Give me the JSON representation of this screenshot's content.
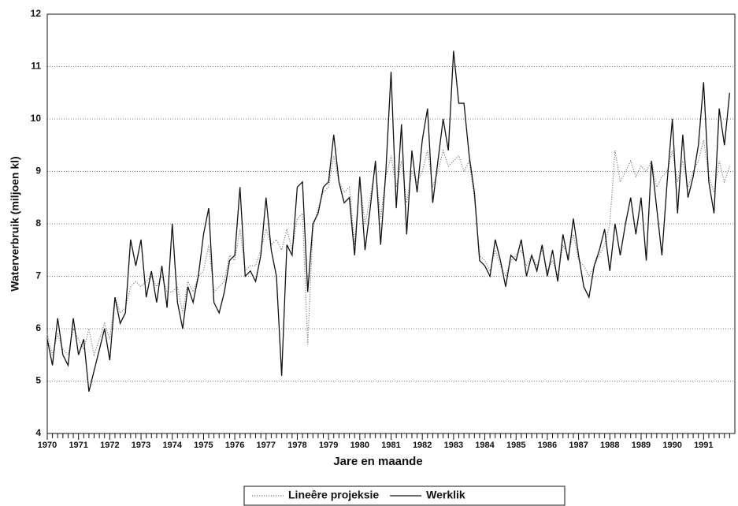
{
  "chart_data": {
    "type": "line",
    "y_label": "Waterverbruik (miljoen kl)",
    "x_label": "Jare en maande",
    "categories": [
      "1970",
      null,
      null,
      null,
      null,
      null,
      "1971",
      null,
      null,
      null,
      null,
      null,
      "1972",
      null,
      null,
      null,
      null,
      null,
      "1973",
      null,
      null,
      null,
      null,
      null,
      "1974",
      null,
      null,
      null,
      null,
      null,
      "1975",
      null,
      null,
      null,
      null,
      null,
      "1976",
      null,
      null,
      null,
      null,
      null,
      "1977",
      null,
      null,
      null,
      null,
      null,
      "1978",
      null,
      null,
      null,
      null,
      null,
      "1979",
      null,
      null,
      null,
      null,
      null,
      "1980",
      null,
      null,
      null,
      null,
      null,
      "1981",
      null,
      null,
      null,
      null,
      null,
      "1982",
      null,
      null,
      null,
      null,
      null,
      "1983",
      null,
      null,
      null,
      null,
      null,
      "1984",
      null,
      null,
      null,
      null,
      null,
      "1985",
      null,
      null,
      null,
      null,
      null,
      "1986",
      null,
      null,
      null,
      null,
      null,
      "1987",
      null,
      null,
      null,
      null,
      null,
      "1988",
      null,
      null,
      null,
      null,
      null,
      "1989",
      null,
      null,
      null,
      null,
      null,
      "1990",
      null,
      null,
      null,
      null,
      null,
      "1991",
      null,
      null,
      null,
      null,
      null
    ],
    "series": [
      {
        "name": "Lineêre projeksie",
        "color": "#777777",
        "style": "dotted",
        "values": [
          5.9,
          5.5,
          5.9,
          5.6,
          5.5,
          6.0,
          5.8,
          5.6,
          6.0,
          5.5,
          5.8,
          6.1,
          5.8,
          6.6,
          6.3,
          6.4,
          6.8,
          6.9,
          6.8,
          6.9,
          7.0,
          6.8,
          7.0,
          6.7,
          6.7,
          6.8,
          6.3,
          6.9,
          6.7,
          7.0,
          7.1,
          7.6,
          6.7,
          6.8,
          6.9,
          7.4,
          7.3,
          7.9,
          7.1,
          7.2,
          7.2,
          7.5,
          7.9,
          7.6,
          7.7,
          7.5,
          7.9,
          7.5,
          8.1,
          8.2,
          5.7,
          7.9,
          8.3,
          8.6,
          8.7,
          9.3,
          8.8,
          8.6,
          8.7,
          7.6,
          8.8,
          8.0,
          8.5,
          9.1,
          8.1,
          8.9,
          9.3,
          8.7,
          9.2,
          8.4,
          9.0,
          8.8,
          9.0,
          9.4,
          8.7,
          9.0,
          9.4,
          9.1,
          9.2,
          9.3,
          9.0,
          9.2,
          8.5,
          7.4,
          7.3,
          7.1,
          7.5,
          7.2,
          7.0,
          7.3,
          7.4,
          7.5,
          7.2,
          7.4,
          7.2,
          7.5,
          7.1,
          7.3,
          7.0,
          7.6,
          7.4,
          7.8,
          7.3,
          7.2,
          7.0,
          7.2,
          7.4,
          7.6,
          8.0,
          9.4,
          8.8,
          9.0,
          9.2,
          8.9,
          9.1,
          9.0,
          9.2,
          8.7,
          8.9,
          9.0,
          9.4,
          8.8,
          9.2,
          8.7,
          9.0,
          9.2,
          9.6,
          8.9,
          8.6,
          9.2,
          8.8,
          9.1
        ]
      },
      {
        "name": "Werklik",
        "color": "#111111",
        "style": "solid",
        "values": [
          5.8,
          5.3,
          6.2,
          5.5,
          5.3,
          6.2,
          5.5,
          5.8,
          4.8,
          5.2,
          5.6,
          6.0,
          5.4,
          6.6,
          6.1,
          6.3,
          7.7,
          7.2,
          7.7,
          6.6,
          7.1,
          6.5,
          7.2,
          6.4,
          8.0,
          6.5,
          6.0,
          6.8,
          6.5,
          7.0,
          7.8,
          8.3,
          6.5,
          6.3,
          6.7,
          7.3,
          7.4,
          8.7,
          7.0,
          7.1,
          6.9,
          7.4,
          8.5,
          7.5,
          7.0,
          5.1,
          7.6,
          7.4,
          8.7,
          8.8,
          6.7,
          8.0,
          8.2,
          8.7,
          8.8,
          9.7,
          8.8,
          8.4,
          8.5,
          7.4,
          8.9,
          7.5,
          8.3,
          9.2,
          7.6,
          9.0,
          10.9,
          8.3,
          9.9,
          7.8,
          9.4,
          8.6,
          9.6,
          10.2,
          8.4,
          9.2,
          10.0,
          9.4,
          11.3,
          10.3,
          10.3,
          9.3,
          8.6,
          7.3,
          7.2,
          7.0,
          7.7,
          7.3,
          6.8,
          7.4,
          7.3,
          7.7,
          7.0,
          7.4,
          7.1,
          7.6,
          7.0,
          7.5,
          6.9,
          7.8,
          7.3,
          8.1,
          7.4,
          6.8,
          6.6,
          7.2,
          7.5,
          7.9,
          7.1,
          8.0,
          7.4,
          8.0,
          8.5,
          7.8,
          8.5,
          7.3,
          9.2,
          8.3,
          7.4,
          8.8,
          10.0,
          8.2,
          9.7,
          8.5,
          8.9,
          9.5,
          10.7,
          8.8,
          8.2,
          10.2,
          9.5,
          10.5
        ]
      }
    ],
    "ylim": [
      4,
      12
    ],
    "yticks": [
      4,
      5,
      6,
      7,
      8,
      9,
      10,
      11,
      12
    ],
    "grid": true,
    "legend": "bottom"
  }
}
